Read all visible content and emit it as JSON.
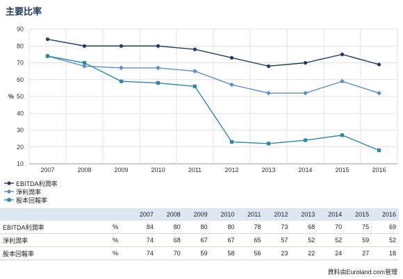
{
  "page": {
    "title": "主要比率",
    "source": "資料由Euroland.com管理"
  },
  "chart_data": {
    "type": "line",
    "x": [
      "2007",
      "2008",
      "2009",
      "2010",
      "2011",
      "2012",
      "2013",
      "2014",
      "2015",
      "2016"
    ],
    "ylabel": "%",
    "ylim": [
      10,
      90
    ],
    "yticks": [
      10,
      20,
      30,
      40,
      50,
      60,
      70,
      80,
      90
    ],
    "grid": true,
    "legend_position": "bottom-left",
    "series": [
      {
        "name": "EBITDA利潤率",
        "color": "#1f3b63",
        "marker": "circle",
        "values": [
          84,
          80,
          80,
          80,
          78,
          73,
          68,
          70,
          75,
          69
        ]
      },
      {
        "name": "淨利潤率",
        "color": "#5b8fc9",
        "marker": "diamond",
        "values": [
          74,
          68,
          67,
          67,
          65,
          57,
          52,
          52,
          59,
          52
        ]
      },
      {
        "name": "股本回報率",
        "color": "#2e86a8",
        "marker": "square",
        "values": [
          74,
          70,
          59,
          58,
          56,
          23,
          22,
          24,
          27,
          18
        ]
      }
    ]
  },
  "table": {
    "headers": [
      "2007",
      "2008",
      "2009",
      "2010",
      "2011",
      "2012",
      "2013",
      "2014",
      "2015",
      "2016"
    ],
    "rows": [
      {
        "label": "EBITDA利潤率",
        "unit": "%",
        "values": [
          "84",
          "80",
          "80",
          "80",
          "78",
          "73",
          "68",
          "70",
          "75",
          "69"
        ]
      },
      {
        "label": "淨利潤率",
        "unit": "%",
        "values": [
          "74",
          "68",
          "67",
          "67",
          "65",
          "57",
          "52",
          "52",
          "59",
          "52"
        ]
      },
      {
        "label": "股本回報率",
        "unit": "%",
        "values": [
          "74",
          "70",
          "59",
          "58",
          "56",
          "23",
          "22",
          "24",
          "27",
          "18"
        ]
      }
    ]
  }
}
